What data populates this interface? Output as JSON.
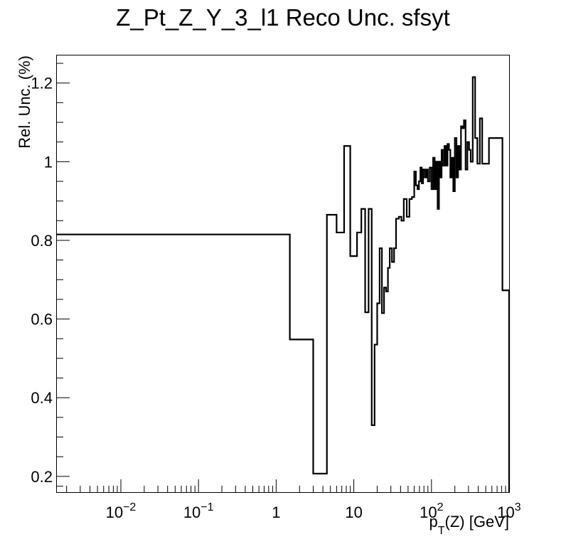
{
  "chart_data": {
    "type": "line",
    "title": "Z_Pt_Z_Y_3_l1 Reco Unc. sfsyt",
    "xlabel": "p_T(Z) [GeV]",
    "xlabel_main": "p",
    "xlabel_sub": "T",
    "xlabel_rest": "(Z) [GeV]",
    "ylabel": "Rel. Unc. (%)",
    "xscale": "log",
    "xlim": [
      0.0015,
      1000
    ],
    "ylim": [
      0.16,
      1.27
    ],
    "yticks": [
      {
        "value": 0.2,
        "label": "0.2"
      },
      {
        "value": 0.4,
        "label": "0.4"
      },
      {
        "value": 0.6,
        "label": "0.6"
      },
      {
        "value": 0.8,
        "label": "0.8"
      },
      {
        "value": 1.0,
        "label": "1"
      },
      {
        "value": 1.2,
        "label": "1.2"
      }
    ],
    "xticks": [
      {
        "value": 0.01,
        "base": "10",
        "exp": "−2"
      },
      {
        "value": 0.1,
        "base": "10",
        "exp": "−1"
      },
      {
        "value": 1,
        "base": "1",
        "exp": ""
      },
      {
        "value": 10,
        "base": "10",
        "exp": ""
      },
      {
        "value": 100,
        "base": "10",
        "exp": "2"
      },
      {
        "value": 1000,
        "base": "10",
        "exp": "3"
      }
    ],
    "grid": false,
    "legend": "none",
    "histogram_steps": [
      [
        0.0015,
        0.815
      ],
      [
        1.5,
        0.548
      ],
      [
        3.0,
        0.207
      ],
      [
        4.5,
        0.865
      ],
      [
        6.0,
        0.82
      ],
      [
        7.5,
        1.04
      ],
      [
        9.0,
        0.76
      ],
      [
        11.0,
        0.82
      ],
      [
        12.5,
        0.88
      ],
      [
        14.0,
        0.617
      ],
      [
        15.5,
        0.88
      ],
      [
        17.0,
        0.33
      ],
      [
        18.5,
        0.535
      ],
      [
        20.0,
        0.64
      ],
      [
        21.5,
        0.78
      ],
      [
        23.0,
        0.615
      ],
      [
        24.5,
        0.68
      ],
      [
        26.0,
        0.67
      ],
      [
        27.5,
        0.73
      ],
      [
        29.0,
        0.78
      ],
      [
        31.0,
        0.745
      ],
      [
        33.0,
        0.78
      ],
      [
        35.0,
        0.855
      ],
      [
        38.0,
        0.86
      ],
      [
        41.0,
        0.85
      ],
      [
        44.0,
        0.905
      ],
      [
        48.0,
        0.86
      ],
      [
        52.0,
        0.905
      ],
      [
        56.0,
        0.91
      ],
      [
        60.0,
        0.975
      ],
      [
        63.0,
        0.94
      ],
      [
        66.0,
        0.93
      ],
      [
        69.0,
        0.95
      ],
      [
        72.0,
        0.985
      ],
      [
        75.0,
        0.945
      ],
      [
        78.0,
        0.98
      ],
      [
        82.0,
        0.96
      ],
      [
        86.0,
        0.98
      ],
      [
        90.0,
        0.95
      ],
      [
        95.0,
        0.985
      ],
      [
        100.0,
        0.93
      ],
      [
        105.0,
        1.01
      ],
      [
        110.0,
        0.93
      ],
      [
        115.0,
        1.0
      ],
      [
        120.0,
        0.88
      ],
      [
        125.0,
        1.0
      ],
      [
        130.0,
        0.96
      ],
      [
        135.0,
        1.03
      ],
      [
        140.0,
        0.99
      ],
      [
        147.0,
        1.04
      ],
      [
        154.0,
        0.99
      ],
      [
        161.0,
        1.045
      ],
      [
        168.0,
        1.03
      ],
      [
        175.0,
        0.96
      ],
      [
        183.0,
        1.01
      ],
      [
        191.0,
        0.925
      ],
      [
        200.0,
        1.06
      ],
      [
        210.0,
        0.96
      ],
      [
        220.0,
        1.04
      ],
      [
        230.0,
        0.98
      ],
      [
        240.0,
        1.09
      ],
      [
        250.0,
        1.085
      ],
      [
        262.0,
        1.105
      ],
      [
        275.0,
        0.98
      ],
      [
        290.0,
        1.05
      ],
      [
        305.0,
        1.03
      ],
      [
        320.0,
        1.0
      ],
      [
        340.0,
        1.215
      ],
      [
        365.0,
        1.06
      ],
      [
        390.0,
        0.995
      ],
      [
        420.0,
        1.11
      ],
      [
        450.0,
        0.995
      ],
      [
        550.0,
        1.06
      ],
      [
        820.0,
        0.673
      ]
    ],
    "x_end": 1000
  }
}
